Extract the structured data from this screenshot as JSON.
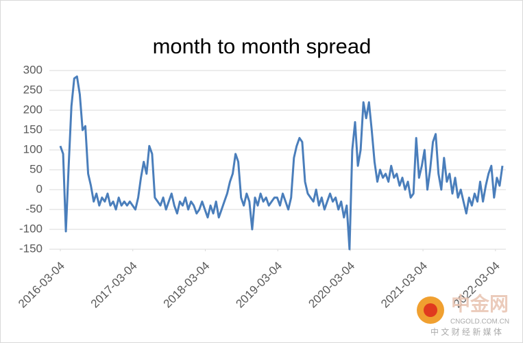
{
  "chart_data": {
    "type": "line",
    "title": "month to month spread",
    "x": [
      "2016-03-04",
      "2016-03-18",
      "2016-04-01",
      "2016-04-15",
      "2016-04-29",
      "2016-05-13",
      "2016-05-27",
      "2016-06-10",
      "2016-06-24",
      "2016-07-08",
      "2016-07-22",
      "2016-08-05",
      "2016-08-19",
      "2016-09-02",
      "2016-09-16",
      "2016-09-30",
      "2016-10-14",
      "2016-10-28",
      "2016-11-11",
      "2016-11-25",
      "2016-12-09",
      "2016-12-23",
      "2017-01-06",
      "2017-01-20",
      "2017-02-03",
      "2017-02-17",
      "2017-03-03",
      "2017-03-17",
      "2017-03-31",
      "2017-04-14",
      "2017-04-28",
      "2017-05-12",
      "2017-05-26",
      "2017-06-09",
      "2017-06-23",
      "2017-07-07",
      "2017-07-21",
      "2017-08-04",
      "2017-08-18",
      "2017-09-01",
      "2017-09-15",
      "2017-09-29",
      "2017-10-13",
      "2017-10-27",
      "2017-11-10",
      "2017-11-24",
      "2017-12-08",
      "2017-12-22",
      "2018-01-05",
      "2018-01-19",
      "2018-02-02",
      "2018-02-16",
      "2018-03-02",
      "2018-03-16",
      "2018-03-30",
      "2018-04-13",
      "2018-04-27",
      "2018-05-11",
      "2018-05-25",
      "2018-06-08",
      "2018-06-22",
      "2018-07-06",
      "2018-07-20",
      "2018-08-03",
      "2018-08-17",
      "2018-08-31",
      "2018-09-14",
      "2018-09-28",
      "2018-10-12",
      "2018-10-26",
      "2018-11-09",
      "2018-11-23",
      "2018-12-07",
      "2018-12-21",
      "2019-01-04",
      "2019-01-18",
      "2019-02-01",
      "2019-02-15",
      "2019-03-01",
      "2019-03-15",
      "2019-03-29",
      "2019-04-12",
      "2019-04-26",
      "2019-05-10",
      "2019-05-24",
      "2019-06-07",
      "2019-06-21",
      "2019-07-05",
      "2019-07-19",
      "2019-08-02",
      "2019-08-16",
      "2019-08-30",
      "2019-09-13",
      "2019-09-27",
      "2019-10-11",
      "2019-10-25",
      "2019-11-08",
      "2019-11-22",
      "2019-12-06",
      "2019-12-20",
      "2020-01-03",
      "2020-01-17",
      "2020-01-31",
      "2020-02-14",
      "2020-02-28",
      "2020-03-13",
      "2020-03-27",
      "2020-04-10",
      "2020-04-24",
      "2020-05-08",
      "2020-05-22",
      "2020-06-05",
      "2020-06-19",
      "2020-07-03",
      "2020-07-17",
      "2020-07-31",
      "2020-08-14",
      "2020-08-28",
      "2020-09-11",
      "2020-09-25",
      "2020-10-09",
      "2020-10-23",
      "2020-11-06",
      "2020-11-20",
      "2020-12-04",
      "2020-12-18",
      "2021-01-01",
      "2021-01-15",
      "2021-01-29",
      "2021-02-12",
      "2021-02-26",
      "2021-03-12",
      "2021-03-26",
      "2021-04-09",
      "2021-04-23",
      "2021-05-07",
      "2021-05-21",
      "2021-06-04",
      "2021-06-18",
      "2021-07-02",
      "2021-07-16",
      "2021-07-30",
      "2021-08-13",
      "2021-08-27",
      "2021-09-10",
      "2021-09-24",
      "2021-10-08",
      "2021-10-22",
      "2021-11-05",
      "2021-11-19",
      "2021-12-03",
      "2021-12-17",
      "2021-12-31",
      "2022-01-14",
      "2022-01-28",
      "2022-02-11",
      "2022-02-25",
      "2022-03-11",
      "2022-03-25",
      "2022-04-08"
    ],
    "series": [
      {
        "name": "month to month spread",
        "color": "#4a7ebb",
        "values": [
          110,
          90,
          -105,
          60,
          210,
          280,
          285,
          240,
          150,
          160,
          40,
          10,
          -30,
          -10,
          -40,
          -20,
          -30,
          -10,
          -40,
          -30,
          -50,
          -20,
          -40,
          -30,
          -40,
          -30,
          -40,
          -50,
          -20,
          30,
          70,
          40,
          110,
          90,
          -20,
          -30,
          -40,
          -20,
          -50,
          -30,
          -10,
          -40,
          -60,
          -30,
          -40,
          -20,
          -50,
          -30,
          -40,
          -60,
          -50,
          -30,
          -50,
          -70,
          -40,
          -60,
          -30,
          -70,
          -50,
          -30,
          -10,
          20,
          40,
          90,
          70,
          -20,
          -40,
          -10,
          -30,
          -100,
          -20,
          -40,
          -10,
          -30,
          -20,
          -40,
          -30,
          -20,
          -20,
          -40,
          -10,
          -30,
          -50,
          -20,
          80,
          110,
          130,
          120,
          20,
          -10,
          -20,
          -30,
          0,
          -40,
          -20,
          -50,
          -30,
          -10,
          -30,
          -20,
          -50,
          -30,
          -70,
          -40,
          -150,
          100,
          170,
          60,
          100,
          220,
          180,
          220,
          150,
          70,
          20,
          50,
          30,
          40,
          20,
          60,
          30,
          40,
          10,
          30,
          0,
          20,
          -20,
          -10,
          130,
          30,
          60,
          100,
          0,
          50,
          120,
          140,
          40,
          0,
          80,
          20,
          40,
          -10,
          30,
          -20,
          0,
          -30,
          -60,
          -20,
          -40,
          -10,
          -30,
          20,
          -30,
          10,
          40,
          60,
          -20,
          30,
          10,
          60
        ]
      }
    ],
    "xticks": [
      "2016-03-04",
      "2017-03-04",
      "2018-03-04",
      "2019-03-04",
      "2020-03-04",
      "2021-03-04",
      "2022-03-04"
    ],
    "ylim": [
      -150,
      300
    ],
    "yticks": [
      -150,
      -100,
      -50,
      0,
      50,
      100,
      150,
      200,
      250,
      300
    ],
    "grid": true
  },
  "watermark": {
    "brand": "中金网",
    "site": "CNGOLD.COM.CN",
    "slogan": "中 文 财 经 新 媒 体"
  }
}
